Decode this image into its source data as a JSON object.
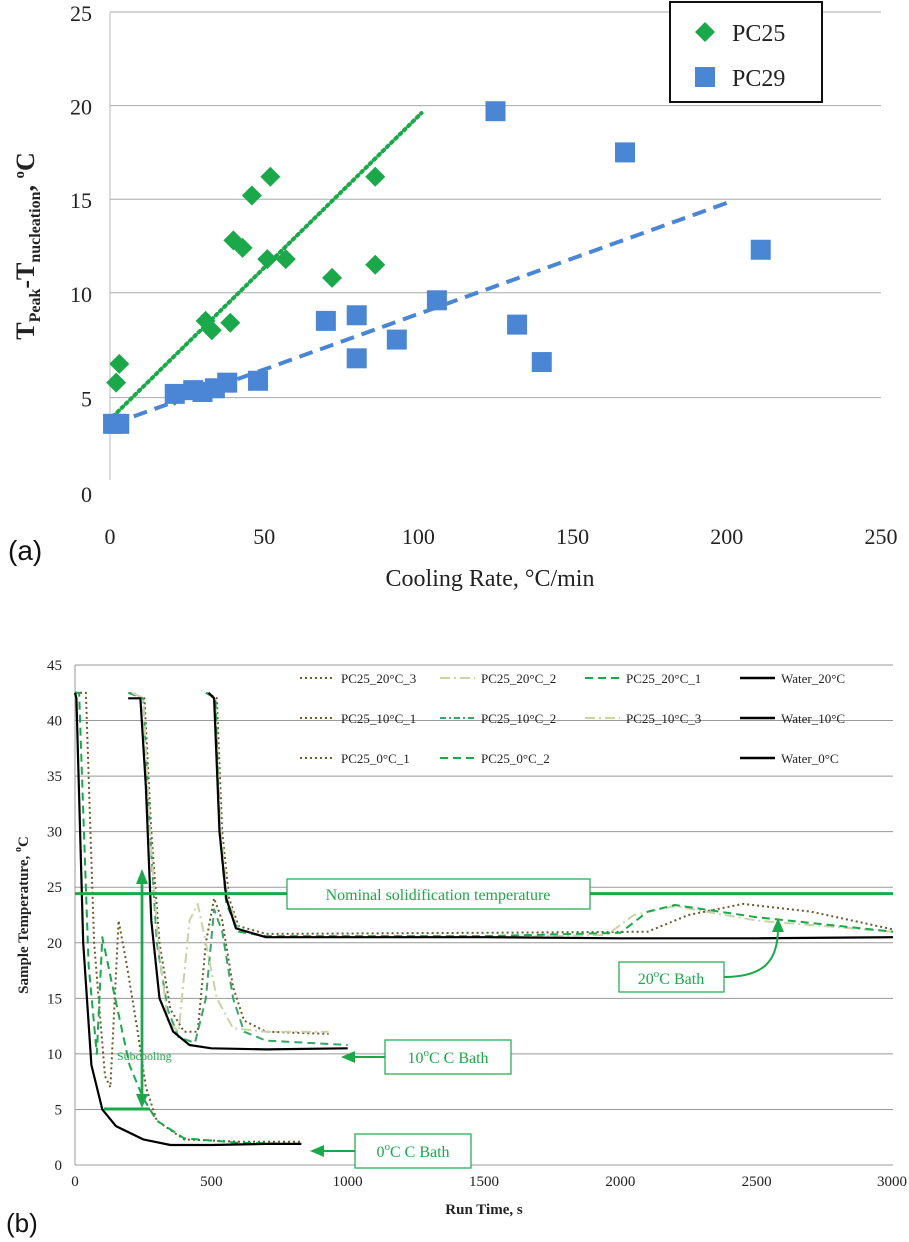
{
  "chart_data": [
    {
      "type": "scatter",
      "panel_label": "(a)",
      "xlabel": "Cooling Rate, °C/min",
      "ylabel": {
        "base": "T",
        "sub1": "Peak",
        "mid": "-T",
        "sub2": "nucleation",
        "tail": ", ",
        "unit_sup": "o",
        "unit": "C"
      },
      "xlim": [
        0,
        250
      ],
      "ylim": [
        0,
        25
      ],
      "xticks": [
        "0",
        "50",
        "100",
        "150",
        "200",
        "250"
      ],
      "yticks": [
        "0",
        "5",
        "10",
        "15",
        "20",
        "25"
      ],
      "grid": "horizontal",
      "legend_placement": "top-right",
      "colors": {
        "PC25": "#1aa84a",
        "PC29": "#4a86d4"
      },
      "series": [
        {
          "name": "PC25",
          "marker": "diamond",
          "points": [
            [
              2,
              5.2
            ],
            [
              3,
              6.2
            ],
            [
              21,
              4.5
            ],
            [
              31,
              8.5
            ],
            [
              33,
              8.0
            ],
            [
              39,
              8.4
            ],
            [
              40,
              12.8
            ],
            [
              43,
              12.4
            ],
            [
              46,
              15.2
            ],
            [
              51,
              11.8
            ],
            [
              52,
              16.2
            ],
            [
              57,
              11.8
            ],
            [
              72,
              10.8
            ],
            [
              86,
              16.2
            ],
            [
              86,
              11.5
            ]
          ],
          "trend": {
            "style": "dotted",
            "from": [
              1,
              3.4
            ],
            "to": [
              101,
              19.6
            ]
          }
        },
        {
          "name": "PC29",
          "marker": "square",
          "points": [
            [
              1,
              3.0
            ],
            [
              3,
              3.0
            ],
            [
              21,
              4.6
            ],
            [
              27,
              4.8
            ],
            [
              30,
              4.7
            ],
            [
              34,
              4.9
            ],
            [
              38,
              5.2
            ],
            [
              48,
              5.3
            ],
            [
              70,
              8.5
            ],
            [
              80,
              8.8
            ],
            [
              80,
              6.5
            ],
            [
              93,
              7.5
            ],
            [
              106,
              9.6
            ],
            [
              125,
              19.7
            ],
            [
              132,
              8.3
            ],
            [
              140,
              6.3
            ],
            [
              167,
              17.5
            ],
            [
              211,
              12.3
            ]
          ],
          "trend": {
            "style": "dashed",
            "from": [
              1,
              3.0
            ],
            "to": [
              200,
              14.8
            ]
          }
        }
      ]
    },
    {
      "type": "line",
      "panel_label": "(b)",
      "xlabel": "Run Time, s",
      "ylabel": {
        "base": "Sample Temperature, ",
        "unit_sup": "o",
        "unit": "C"
      },
      "xlim": [
        0,
        3000
      ],
      "ylim": [
        0,
        45
      ],
      "xticks": [
        "0",
        "500",
        "1000",
        "1500",
        "2000",
        "2500",
        "3000"
      ],
      "yticks": [
        "0",
        "5",
        "10",
        "15",
        "20",
        "25",
        "30",
        "35",
        "40",
        "45"
      ],
      "grid": "horizontal",
      "legend_placement": "top-right",
      "legend": [
        {
          "name": "PC25_20°C_3",
          "color": "#6b5a2e",
          "style": "dotted"
        },
        {
          "name": "PC25_20°C_2",
          "color": "#c9d3a8",
          "style": "dashdot"
        },
        {
          "name": "PC25_20°C_1",
          "color": "#1aa84a",
          "style": "dashed"
        },
        {
          "name": "Water_20°C",
          "color": "#000000",
          "style": "solid"
        },
        {
          "name": "PC25_10°C_1",
          "color": "#6b5a2e",
          "style": "dotted"
        },
        {
          "name": "PC25_10°C_2",
          "color": "#3aa46a",
          "style": "dashed-dotted"
        },
        {
          "name": "PC25_10°C_3",
          "color": "#c9d3a8",
          "style": "dashdot"
        },
        {
          "name": "Water_10°C",
          "color": "#000000",
          "style": "solid"
        },
        {
          "name": "PC25_0°C_1",
          "color": "#6b5a2e",
          "style": "dotted"
        },
        {
          "name": "PC25_0°C_2",
          "color": "#1aa84a",
          "style": "dashed"
        },
        {
          "name": "Water_0°C",
          "color": "#000000",
          "style": "solid"
        }
      ],
      "series": [
        {
          "name": "PC25_0°C_1",
          "color": "#6b5a2e",
          "style": "dotted",
          "points": [
            [
              0,
              42.5
            ],
            [
              40,
              42.5
            ],
            [
              70,
              20
            ],
            [
              110,
              8
            ],
            [
              130,
              7
            ],
            [
              160,
              22
            ],
            [
              190,
              18
            ],
            [
              230,
              12
            ],
            [
              260,
              7
            ],
            [
              300,
              4
            ],
            [
              400,
              2.3
            ],
            [
              600,
              2.1
            ],
            [
              830,
              2.1
            ]
          ]
        },
        {
          "name": "PC25_0°C_2",
          "color": "#1aa84a",
          "style": "dashed",
          "points": [
            [
              0,
              42.5
            ],
            [
              15,
              42.5
            ],
            [
              50,
              18
            ],
            [
              80,
              10
            ],
            [
              100,
              20.5
            ],
            [
              130,
              17
            ],
            [
              200,
              9
            ],
            [
              250,
              6
            ],
            [
              300,
              4
            ],
            [
              400,
              2.4
            ],
            [
              600,
              2.0
            ],
            [
              830,
              1.9
            ]
          ]
        },
        {
          "name": "Water_0°C",
          "color": "#000000",
          "style": "solid",
          "points": [
            [
              0,
              42.5
            ],
            [
              5,
              42
            ],
            [
              30,
              20
            ],
            [
              60,
              9
            ],
            [
              100,
              5
            ],
            [
              150,
              3.5
            ],
            [
              250,
              2.3
            ],
            [
              350,
              1.8
            ],
            [
              500,
              1.8
            ],
            [
              700,
              1.9
            ],
            [
              830,
              1.9
            ]
          ]
        },
        {
          "name": "PC25_10°C_1",
          "color": "#6b5a2e",
          "style": "dotted",
          "points": [
            [
              200,
              42.5
            ],
            [
              255,
              42
            ],
            [
              280,
              30
            ],
            [
              310,
              20
            ],
            [
              350,
              14
            ],
            [
              400,
              12
            ],
            [
              450,
              12
            ],
            [
              480,
              20
            ],
            [
              510,
              24
            ],
            [
              540,
              22
            ],
            [
              580,
              16
            ],
            [
              620,
              13
            ],
            [
              700,
              12
            ],
            [
              930,
              11.8
            ]
          ]
        },
        {
          "name": "PC25_10°C_2",
          "color": "#3aa46a",
          "style": "dashed",
          "points": [
            [
              195,
              42.5
            ],
            [
              250,
              42
            ],
            [
              275,
              30
            ],
            [
              300,
              20
            ],
            [
              340,
              14
            ],
            [
              380,
              11.5
            ],
            [
              440,
              11
            ],
            [
              480,
              15
            ],
            [
              510,
              23
            ],
            [
              540,
              21
            ],
            [
              580,
              15
            ],
            [
              620,
              12
            ],
            [
              700,
              11.2
            ],
            [
              1000,
              10.8
            ]
          ]
        },
        {
          "name": "PC25_10°C_3",
          "color": "#c9d3a8",
          "style": "dashdot",
          "points": [
            [
              210,
              42.5
            ],
            [
              250,
              42
            ],
            [
              275,
              30
            ],
            [
              305,
              20
            ],
            [
              340,
              13
            ],
            [
              380,
              12
            ],
            [
              420,
              22
            ],
            [
              450,
              23.5
            ],
            [
              480,
              20
            ],
            [
              520,
              15
            ],
            [
              580,
              12.3
            ],
            [
              700,
              12
            ],
            [
              930,
              12
            ]
          ]
        },
        {
          "name": "Water_10°C",
          "color": "#000000",
          "style": "solid",
          "points": [
            [
              195,
              42
            ],
            [
              240,
              42
            ],
            [
              260,
              34
            ],
            [
              280,
              22
            ],
            [
              310,
              15
            ],
            [
              360,
              12
            ],
            [
              420,
              10.8
            ],
            [
              500,
              10.5
            ],
            [
              700,
              10.4
            ],
            [
              1000,
              10.5
            ]
          ]
        },
        {
          "name": "PC25_20°C_3",
          "color": "#6b5a2e",
          "style": "dotted",
          "points": [
            [
              485,
              42.5
            ],
            [
              520,
              42
            ],
            [
              540,
              30
            ],
            [
              565,
              24
            ],
            [
              600,
              21.5
            ],
            [
              700,
              20.8
            ],
            [
              1500,
              20.9
            ],
            [
              2100,
              21
            ],
            [
              2250,
              22.5
            ],
            [
              2450,
              23.5
            ],
            [
              2700,
              22.8
            ],
            [
              3000,
              21.2
            ]
          ]
        },
        {
          "name": "PC25_20°C_2",
          "color": "#c9d3a8",
          "style": "dashdot",
          "points": [
            [
              480,
              42.5
            ],
            [
              515,
              42
            ],
            [
              535,
              30
            ],
            [
              560,
              24
            ],
            [
              600,
              21.2
            ],
            [
              700,
              20.5
            ],
            [
              1500,
              20.5
            ],
            [
              1950,
              20.7
            ],
            [
              2050,
              22.5
            ],
            [
              2200,
              23.3
            ],
            [
              2500,
              22
            ],
            [
              3000,
              21
            ]
          ]
        },
        {
          "name": "PC25_20°C_1",
          "color": "#1aa84a",
          "style": "dashed",
          "points": [
            [
              480,
              42.5
            ],
            [
              515,
              42
            ],
            [
              530,
              30
            ],
            [
              555,
              23.5
            ],
            [
              600,
              21
            ],
            [
              700,
              20.6
            ],
            [
              1500,
              20.6
            ],
            [
              2000,
              20.9
            ],
            [
              2100,
              22.8
            ],
            [
              2200,
              23.4
            ],
            [
              2500,
              22.3
            ],
            [
              3000,
              21
            ]
          ]
        },
        {
          "name": "Water_20°C",
          "color": "#000000",
          "style": "solid",
          "points": [
            [
              490,
              42.5
            ],
            [
              510,
              42
            ],
            [
              530,
              30
            ],
            [
              555,
              24
            ],
            [
              590,
              21.3
            ],
            [
              700,
              20.5
            ],
            [
              1500,
              20.5
            ],
            [
              2000,
              20.4
            ],
            [
              2500,
              20.4
            ],
            [
              3000,
              20.5
            ]
          ]
        }
      ],
      "annotations": {
        "nominal_label": "Nominal solidification temperature",
        "nominal_value": 25,
        "subcooling": "Subcooling",
        "bath20": {
          "base": "20",
          "sup": "o",
          "tail": "C Bath"
        },
        "bath10": {
          "base": "10",
          "sup": "o",
          "tail": "C C Bath"
        },
        "bath0": {
          "base": "0",
          "sup": "o",
          "tail": "C C Bath"
        }
      }
    }
  ]
}
